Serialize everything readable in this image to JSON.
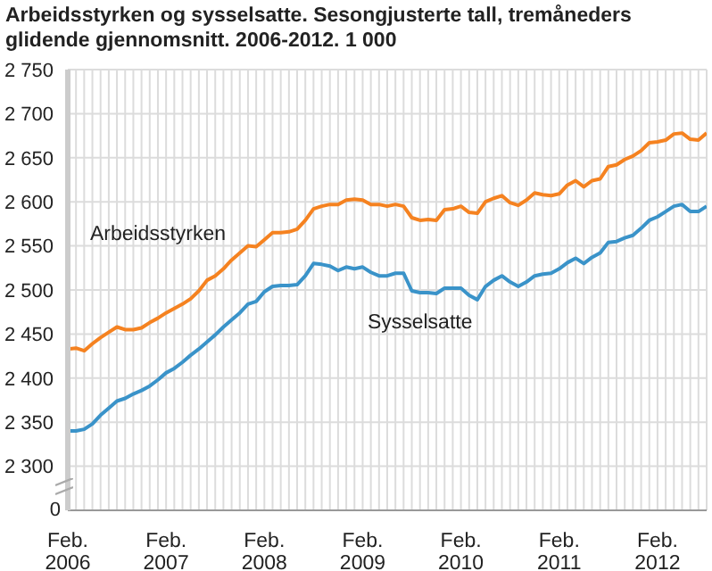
{
  "chart_data": {
    "type": "line",
    "title": "Arbeidsstyrken og sysselsatte. Sesongjusterte tall, tremåneders glidende gjennomsnitt. 2006-2012. 1 000",
    "x": [
      "2006-02",
      "2006-03",
      "2006-04",
      "2006-05",
      "2006-06",
      "2006-07",
      "2006-08",
      "2006-09",
      "2006-10",
      "2006-11",
      "2006-12",
      "2007-01",
      "2007-02",
      "2007-03",
      "2007-04",
      "2007-05",
      "2007-06",
      "2007-07",
      "2007-08",
      "2007-09",
      "2007-10",
      "2007-11",
      "2007-12",
      "2008-01",
      "2008-02",
      "2008-03",
      "2008-04",
      "2008-05",
      "2008-06",
      "2008-07",
      "2008-08",
      "2008-09",
      "2008-10",
      "2008-11",
      "2008-12",
      "2009-01",
      "2009-02",
      "2009-03",
      "2009-04",
      "2009-05",
      "2009-06",
      "2009-07",
      "2009-08",
      "2009-09",
      "2009-10",
      "2009-11",
      "2009-12",
      "2010-01",
      "2010-02",
      "2010-03",
      "2010-04",
      "2010-05",
      "2010-06",
      "2010-07",
      "2010-08",
      "2010-09",
      "2010-10",
      "2010-11",
      "2010-12",
      "2011-01",
      "2011-02",
      "2011-03",
      "2011-04",
      "2011-05",
      "2011-06",
      "2011-07",
      "2011-08",
      "2011-09",
      "2011-10",
      "2011-11",
      "2011-12",
      "2012-01",
      "2012-02",
      "2012-03",
      "2012-04",
      "2012-05",
      "2012-06",
      "2012-07",
      "2012-08"
    ],
    "series": [
      {
        "name": "Arbeidsstyrken",
        "color": "#f58220",
        "values": [
          2433,
          2434,
          2431,
          2439,
          2446,
          2452,
          2458,
          2455,
          2455,
          2457,
          2463,
          2468,
          2474,
          2479,
          2484,
          2490,
          2499,
          2511,
          2516,
          2524,
          2534,
          2542,
          2550,
          2549,
          2557,
          2565,
          2565,
          2566,
          2569,
          2579,
          2592,
          2595,
          2597,
          2597,
          2602,
          2603,
          2602,
          2597,
          2597,
          2595,
          2597,
          2595,
          2582,
          2579,
          2580,
          2579,
          2591,
          2592,
          2595,
          2588,
          2587,
          2600,
          2604,
          2607,
          2599,
          2596,
          2602,
          2610,
          2608,
          2607,
          2609,
          2619,
          2624,
          2617,
          2624,
          2626,
          2640,
          2642,
          2648,
          2652,
          2658,
          2667,
          2668,
          2670,
          2677,
          2678,
          2671,
          2670,
          2678
        ]
      },
      {
        "name": "Sysselsatte",
        "color": "#3a93c9",
        "values": [
          2340,
          2340,
          2342,
          2348,
          2358,
          2366,
          2374,
          2377,
          2382,
          2386,
          2391,
          2398,
          2406,
          2411,
          2418,
          2426,
          2433,
          2441,
          2449,
          2458,
          2466,
          2474,
          2484,
          2487,
          2498,
          2504,
          2505,
          2505,
          2506,
          2516,
          2530,
          2529,
          2527,
          2522,
          2526,
          2524,
          2526,
          2520,
          2516,
          2516,
          2519,
          2519,
          2499,
          2497,
          2497,
          2496,
          2502,
          2502,
          2502,
          2494,
          2489,
          2504,
          2511,
          2516,
          2509,
          2504,
          2509,
          2516,
          2518,
          2519,
          2524,
          2531,
          2536,
          2530,
          2537,
          2542,
          2554,
          2555,
          2559,
          2562,
          2570,
          2579,
          2583,
          2589,
          2595,
          2597,
          2589,
          2589,
          2595
        ]
      }
    ],
    "xlim": [
      "2006-02",
      "2012-08"
    ],
    "xticks": [
      {
        "value": "2006-02",
        "label": "Feb.\n2006"
      },
      {
        "value": "2006-03",
        "label": null
      },
      {
        "value": "2006-04",
        "label": null
      },
      {
        "value": "2006-05",
        "label": null
      },
      {
        "value": "2006-06",
        "label": null
      },
      {
        "value": "2006-07",
        "label": null
      },
      {
        "value": "2006-08",
        "label": null
      },
      {
        "value": "2006-09",
        "label": null
      },
      {
        "value": "2006-10",
        "label": null
      },
      {
        "value": "2006-11",
        "label": null
      },
      {
        "value": "2006-12",
        "label": null
      },
      {
        "value": "2007-01",
        "label": null
      },
      {
        "value": "2007-02",
        "label": "Feb.\n2007"
      },
      {
        "value": "2007-03",
        "label": null
      },
      {
        "value": "2007-04",
        "label": null
      },
      {
        "value": "2007-05",
        "label": null
      },
      {
        "value": "2007-06",
        "label": null
      },
      {
        "value": "2007-07",
        "label": null
      },
      {
        "value": "2007-08",
        "label": null
      },
      {
        "value": "2007-09",
        "label": null
      },
      {
        "value": "2007-10",
        "label": null
      },
      {
        "value": "2007-11",
        "label": null
      },
      {
        "value": "2007-12",
        "label": null
      },
      {
        "value": "2008-01",
        "label": null
      },
      {
        "value": "2008-02",
        "label": "Feb.\n2008"
      },
      {
        "value": "2008-03",
        "label": null
      },
      {
        "value": "2008-04",
        "label": null
      },
      {
        "value": "2008-05",
        "label": null
      },
      {
        "value": "2008-06",
        "label": null
      },
      {
        "value": "2008-07",
        "label": null
      },
      {
        "value": "2008-08",
        "label": null
      },
      {
        "value": "2008-09",
        "label": null
      },
      {
        "value": "2008-10",
        "label": null
      },
      {
        "value": "2008-11",
        "label": null
      },
      {
        "value": "2008-12",
        "label": null
      },
      {
        "value": "2009-01",
        "label": null
      },
      {
        "value": "2009-02",
        "label": "Feb.\n2009"
      },
      {
        "value": "2009-03",
        "label": null
      },
      {
        "value": "2009-04",
        "label": null
      },
      {
        "value": "2009-05",
        "label": null
      },
      {
        "value": "2009-06",
        "label": null
      },
      {
        "value": "2009-07",
        "label": null
      },
      {
        "value": "2009-08",
        "label": null
      },
      {
        "value": "2009-09",
        "label": null
      },
      {
        "value": "2009-10",
        "label": null
      },
      {
        "value": "2009-11",
        "label": null
      },
      {
        "value": "2009-12",
        "label": null
      },
      {
        "value": "2010-01",
        "label": null
      },
      {
        "value": "2010-02",
        "label": "Feb.\n2010"
      },
      {
        "value": "2010-03",
        "label": null
      },
      {
        "value": "2010-04",
        "label": null
      },
      {
        "value": "2010-05",
        "label": null
      },
      {
        "value": "2010-06",
        "label": null
      },
      {
        "value": "2010-07",
        "label": null
      },
      {
        "value": "2010-08",
        "label": null
      },
      {
        "value": "2010-09",
        "label": null
      },
      {
        "value": "2010-10",
        "label": null
      },
      {
        "value": "2010-11",
        "label": null
      },
      {
        "value": "2010-12",
        "label": null
      },
      {
        "value": "2011-01",
        "label": null
      },
      {
        "value": "2011-02",
        "label": "Feb.\n2011"
      },
      {
        "value": "2011-03",
        "label": null
      },
      {
        "value": "2011-04",
        "label": null
      },
      {
        "value": "2011-05",
        "label": null
      },
      {
        "value": "2011-06",
        "label": null
      },
      {
        "value": "2011-07",
        "label": null
      },
      {
        "value": "2011-08",
        "label": null
      },
      {
        "value": "2011-09",
        "label": null
      },
      {
        "value": "2011-10",
        "label": null
      },
      {
        "value": "2011-11",
        "label": null
      },
      {
        "value": "2011-12",
        "label": null
      },
      {
        "value": "2012-01",
        "label": null
      },
      {
        "value": "2012-02",
        "label": "Feb.\n2012"
      },
      {
        "value": "2012-03",
        "label": null
      },
      {
        "value": "2012-04",
        "label": null
      },
      {
        "value": "2012-05",
        "label": null
      },
      {
        "value": "2012-06",
        "label": null
      },
      {
        "value": "2012-07",
        "label": null
      },
      {
        "value": "2012-08",
        "label": null
      }
    ],
    "ylim": [
      2250,
      2750
    ],
    "annotations": [
      "0"
    ],
    "yticks": [
      2300,
      2350,
      2400,
      2450,
      2500,
      2550,
      2600,
      2650,
      2700,
      2750
    ],
    "grid": true,
    "marker": "none",
    "line_style": "solid"
  }
}
